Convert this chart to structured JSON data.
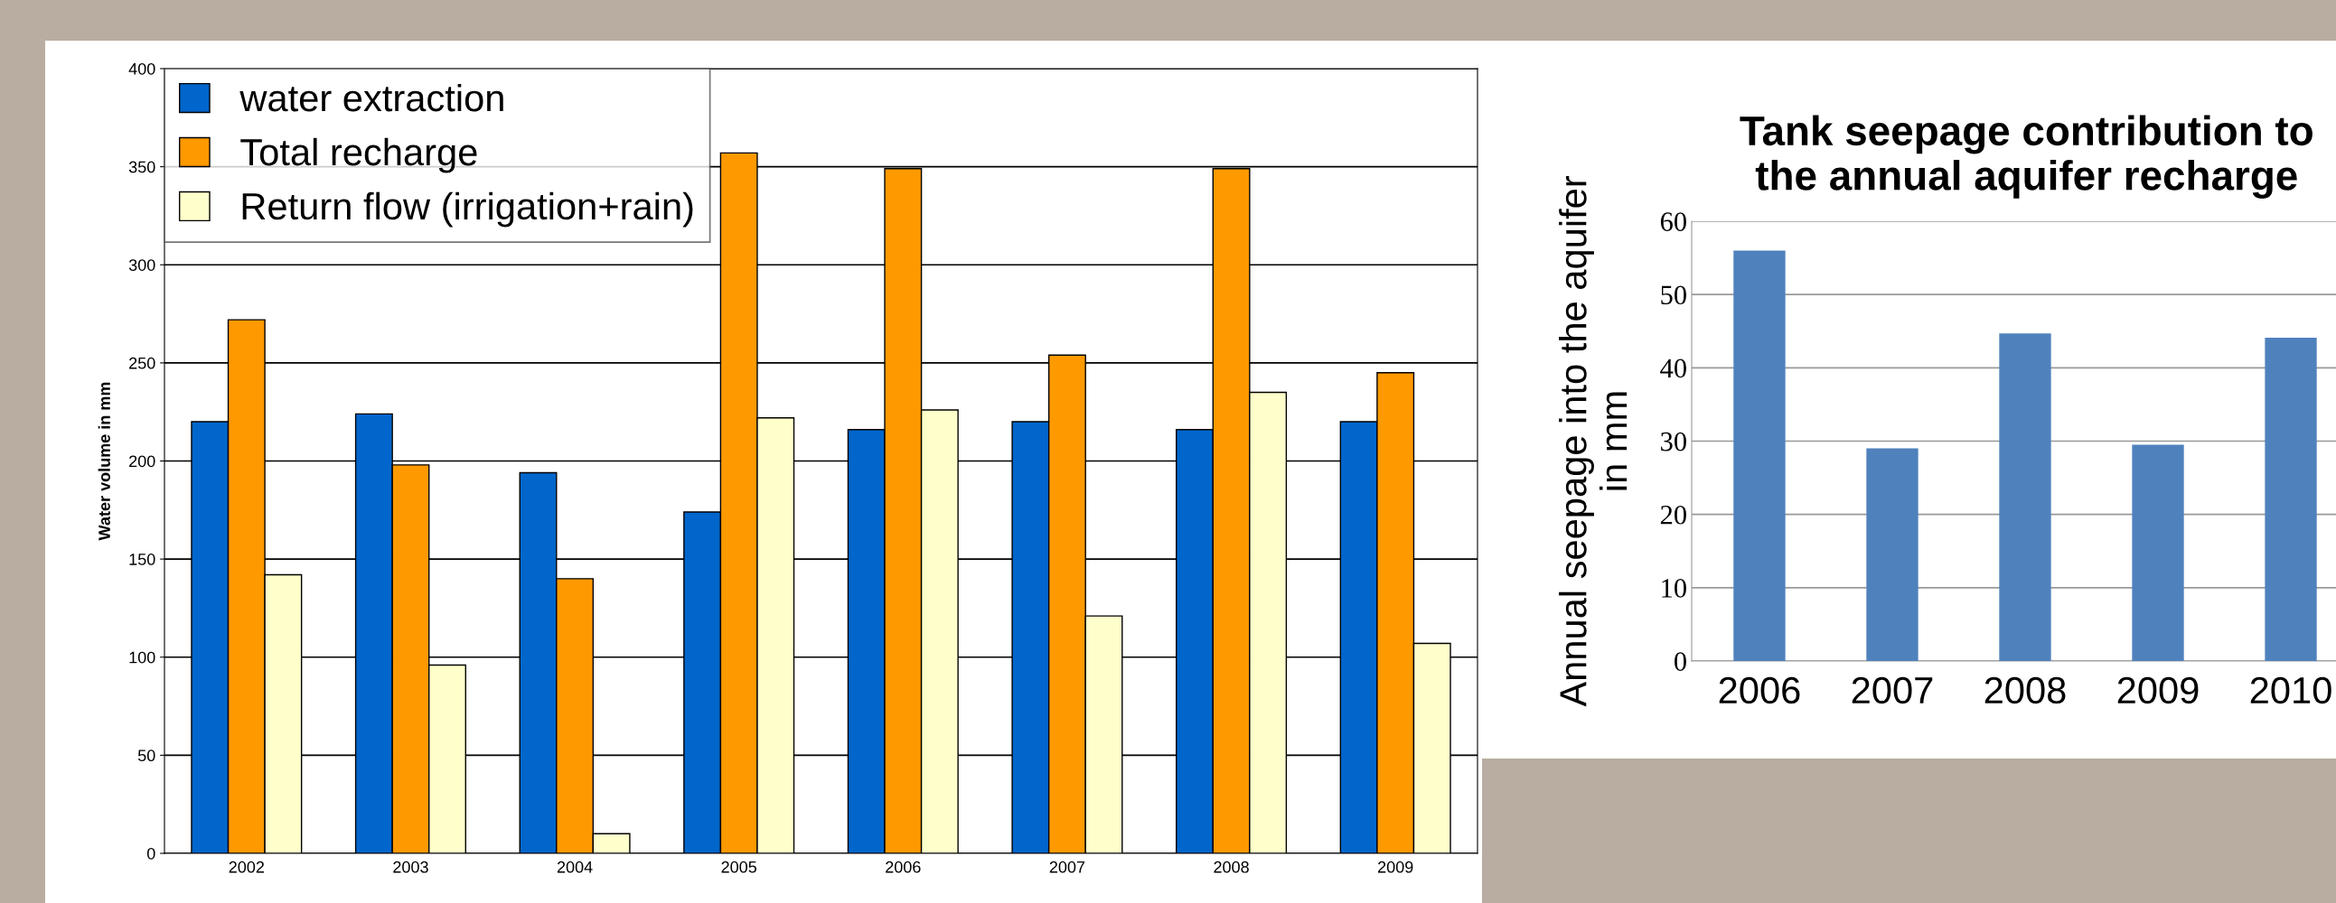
{
  "chart_data": [
    {
      "type": "bar",
      "ylabel": "Water volume in mm",
      "categories": [
        "2002",
        "2003",
        "2004",
        "2005",
        "2006",
        "2007",
        "2008",
        "2009"
      ],
      "series": [
        {
          "name": "water extraction",
          "color": "#0066cc",
          "values": [
            220,
            224,
            194,
            174,
            216,
            220,
            216,
            220
          ]
        },
        {
          "name": "Total recharge",
          "color": "#ff9900",
          "values": [
            272,
            198,
            140,
            357,
            349,
            254,
            349,
            245
          ]
        },
        {
          "name": "Return flow (irrigation+rain)",
          "color": "#ffffcc",
          "values": [
            142,
            96,
            10,
            222,
            226,
            121,
            235,
            107
          ]
        }
      ],
      "ylim": [
        0,
        400
      ],
      "yticks": [
        0,
        50,
        100,
        150,
        200,
        250,
        300,
        350,
        400
      ],
      "grid": "y",
      "legend": "top left"
    },
    {
      "type": "bar",
      "title": "Tank seepage contribution to\nthe annual aquifer recharge",
      "ylabel": "Annual seepage into the aquifer\nin mm",
      "categories": [
        "2006",
        "2007",
        "2008",
        "2009",
        "2010"
      ],
      "values": [
        56,
        29,
        44.7,
        29.5,
        44.1
      ],
      "color": "#4f81bd",
      "ylim": [
        0,
        60
      ],
      "yticks": [
        0,
        10,
        20,
        30,
        40,
        50,
        60
      ],
      "grid": "y"
    }
  ]
}
